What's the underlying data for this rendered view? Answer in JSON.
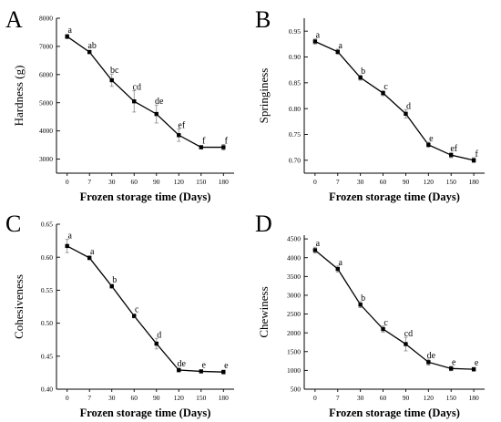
{
  "chart_data": [
    {
      "panel": "A",
      "type": "line",
      "xlabel": "Frozen storage time (Days)",
      "ylabel": "Hardness (g)",
      "categories": [
        "0",
        "7",
        "30",
        "60",
        "90",
        "120",
        "150",
        "180"
      ],
      "values": [
        7350,
        6800,
        5800,
        5050,
        4600,
        3850,
        3420,
        3420
      ],
      "errors": [
        80,
        60,
        220,
        380,
        320,
        220,
        60,
        100
      ],
      "letters": [
        "a",
        "ab",
        "bc",
        "cd",
        "de",
        "ef",
        "f",
        "f"
      ],
      "ylim": [
        2500,
        8000
      ],
      "yticks": [
        3000,
        4000,
        5000,
        6000,
        7000,
        8000
      ]
    },
    {
      "panel": "B",
      "type": "line",
      "xlabel": "Frozen storage time (Days)",
      "ylabel": "Springiness",
      "categories": [
        "0",
        "7",
        "30",
        "60",
        "90",
        "120",
        "150",
        "180"
      ],
      "values": [
        0.93,
        0.91,
        0.86,
        0.83,
        0.79,
        0.73,
        0.71,
        0.7
      ],
      "errors": [
        0.005,
        0.005,
        0.005,
        0.005,
        0.008,
        0.005,
        0.005,
        0.005
      ],
      "letters": [
        "a",
        "a",
        "b",
        "c",
        "d",
        "e",
        "ef",
        "f"
      ],
      "ylim": [
        0.675,
        0.975
      ],
      "yticks": [
        0.7,
        0.75,
        0.8,
        0.85,
        0.9,
        0.95
      ]
    },
    {
      "panel": "C",
      "type": "line",
      "xlabel": "Frozen storage time (Days)",
      "ylabel": "Cohesiveness",
      "categories": [
        "0",
        "7",
        "30",
        "60",
        "90",
        "120",
        "150",
        "180"
      ],
      "values": [
        0.617,
        0.599,
        0.556,
        0.511,
        0.469,
        0.429,
        0.427,
        0.426
      ],
      "errors": [
        0.01,
        0.003,
        0.003,
        0.003,
        0.008,
        0.003,
        0.002,
        0.003
      ],
      "letters": [
        "a",
        "a",
        "b",
        "c",
        "d",
        "de",
        "e",
        "e"
      ],
      "ylim": [
        0.4,
        0.65
      ],
      "yticks": [
        0.4,
        0.45,
        0.5,
        0.55,
        0.6,
        0.65
      ]
    },
    {
      "panel": "D",
      "type": "line",
      "xlabel": "Frozen storage time (Days)",
      "ylabel": "Chewiness",
      "categories": [
        "0",
        "7",
        "30",
        "60",
        "90",
        "120",
        "150",
        "180"
      ],
      "values": [
        4200,
        3700,
        2750,
        2100,
        1700,
        1220,
        1050,
        1030
      ],
      "errors": [
        80,
        80,
        80,
        80,
        180,
        80,
        60,
        50
      ],
      "letters": [
        "a",
        "a",
        "b",
        "c",
        "cd",
        "de",
        "e",
        "e"
      ],
      "ylim": [
        500,
        4600
      ],
      "yticks": [
        500,
        1000,
        1500,
        2000,
        2500,
        3000,
        3500,
        4000,
        4500
      ]
    }
  ]
}
